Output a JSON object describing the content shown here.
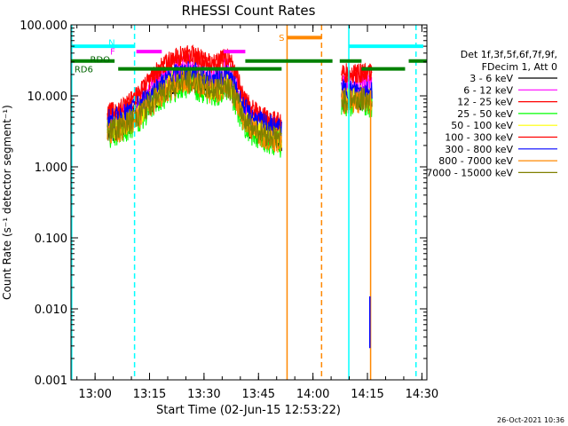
{
  "chart_data": {
    "type": "line",
    "title": "RHESSI Count Rates",
    "xlabel": "Start Time (02-Jun-15 12:53:22)",
    "ylabel": "Count Rate (s⁻¹ detector segment⁻¹)",
    "y_scale": "log",
    "ylim": [
      0.001,
      100
    ],
    "x_unit": "minutes after 12:53:22",
    "xlim": [
      0,
      98
    ],
    "x_ticks": [
      {
        "x": 6.63,
        "label": "13:00"
      },
      {
        "x": 21.63,
        "label": "13:15"
      },
      {
        "x": 36.63,
        "label": "13:30"
      },
      {
        "x": 51.63,
        "label": "13:45"
      },
      {
        "x": 66.63,
        "label": "14:00"
      },
      {
        "x": 81.63,
        "label": "14:15"
      },
      {
        "x": 96.63,
        "label": "14:30"
      }
    ],
    "y_ticks": [
      {
        "y": 100,
        "label": "100.000"
      },
      {
        "y": 10,
        "label": "10.000"
      },
      {
        "y": 1,
        "label": "1.000"
      },
      {
        "y": 0.1,
        "label": "0.100"
      },
      {
        "y": 0.01,
        "label": "0.010"
      },
      {
        "y": 0.001,
        "label": "0.001"
      }
    ],
    "legend_position": "right",
    "legend_header": [
      "Det 1f,3f,5f,6f,7f,9f,",
      "FDecim 1, Att 0"
    ],
    "footer": "26-Oct-2021 10:36",
    "segments": [
      [
        10,
        58
      ],
      [
        74.5,
        83
      ]
    ],
    "series": [
      {
        "name": "3 - 6 keV",
        "color": "#000000",
        "base": 3.2,
        "peak": 18,
        "amp": 0.2
      },
      {
        "name": "6 - 12 keV",
        "color": "#ff00ff",
        "base": 4.2,
        "peak": 26,
        "amp": 0.18
      },
      {
        "name": "12 - 25 keV",
        "color": "#ff0000",
        "base": 5.5,
        "peak": 38,
        "amp": 0.14
      },
      {
        "name": "25 - 50 keV",
        "color": "#00ff00",
        "base": 2.8,
        "peak": 14,
        "amp": 0.2
      },
      {
        "name": "50 - 100 keV",
        "color": "#ffff00",
        "base": 3.5,
        "peak": 17,
        "amp": 0.18
      },
      {
        "name": "100 - 300 keV",
        "color": "#ff0000",
        "base": 5.5,
        "peak": 38,
        "amp": 0.14
      },
      {
        "name": "300 - 800 keV",
        "color": "#0000ff",
        "base": 4.6,
        "peak": 22,
        "amp": 0.15
      },
      {
        "name": "800 - 7000 keV",
        "color": "#ff8800",
        "base": 3.0,
        "peak": 15,
        "amp": 0.18
      },
      {
        "name": "7000 - 15000 keV",
        "color": "#808000",
        "base": 3.3,
        "peak": 16,
        "amp": 0.18
      }
    ],
    "annotations": [
      {
        "label": "N",
        "color": "#00ffff",
        "x": 11.2,
        "y": 57
      },
      {
        "label": "F",
        "color": "#ff00ff",
        "x": 11.5,
        "y": 43
      },
      {
        "label": "RDO",
        "color": "#006400",
        "x": 8.0,
        "y": 33
      },
      {
        "label": "RD6",
        "color": "#006400",
        "x": 3.5,
        "y": 24
      },
      {
        "label": "S",
        "color": "#ff8800",
        "x": 58.0,
        "y": 67
      }
    ],
    "flag_bars": [
      {
        "name": "N",
        "color": "#00ffff",
        "y": 50,
        "ranges": [
          [
            0,
            17.5
          ],
          [
            76.5,
            97
          ]
        ]
      },
      {
        "name": "S",
        "color": "#ff8800",
        "y": 66,
        "ranges": [
          [
            59.5,
            69
          ]
        ]
      },
      {
        "name": "F",
        "color": "#ff00ff",
        "y": 42,
        "ranges": [
          [
            18,
            25
          ],
          [
            42,
            48
          ]
        ]
      },
      {
        "name": "RDO",
        "color": "#008000",
        "y": 31,
        "ranges": [
          [
            0,
            12
          ],
          [
            48,
            72
          ],
          [
            74,
            80
          ],
          [
            93,
            98
          ]
        ]
      },
      {
        "name": "RD6",
        "color": "#008000",
        "y": 24,
        "ranges": [
          [
            13,
            58
          ],
          [
            80,
            92
          ]
        ]
      }
    ],
    "vertical_lines": [
      {
        "x": 0.2,
        "color": "#00ffff",
        "style": "solid"
      },
      {
        "x": 17.5,
        "color": "#00ffff",
        "style": "dashed"
      },
      {
        "x": 59.5,
        "color": "#ff8800",
        "style": "solid"
      },
      {
        "x": 69,
        "color": "#ff8800",
        "style": "dashed"
      },
      {
        "x": 76.5,
        "color": "#00ffff",
        "style": "solid"
      },
      {
        "x": 95,
        "color": "#00ffff",
        "style": "dashed"
      },
      {
        "x": 82.5,
        "color": "#ff8800",
        "style": "solid",
        "y_from": 0.001,
        "y_to": 12
      },
      {
        "x": 82.3,
        "color": "#0000ff",
        "style": "solid",
        "y_from": 0.0028,
        "y_to": 0.015
      }
    ]
  }
}
